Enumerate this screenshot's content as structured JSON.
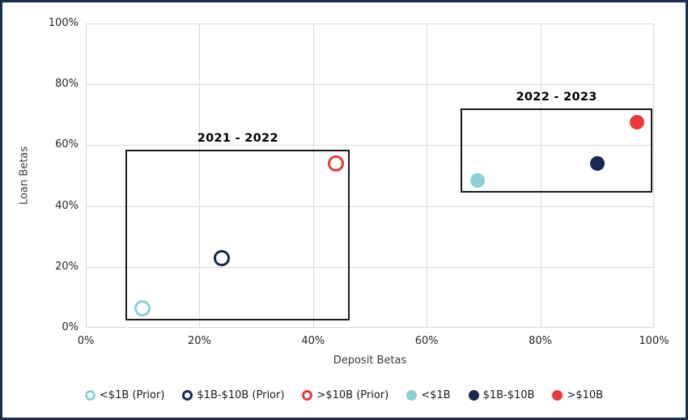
{
  "chart_data": {
    "type": "scatter",
    "title": "",
    "xlabel": "Deposit Betas",
    "ylabel": "Loan Betas",
    "xlim": [
      0,
      100
    ],
    "ylim": [
      0,
      100
    ],
    "x_tick_values": [
      0,
      20,
      40,
      60,
      80,
      100
    ],
    "x_tick_labels": [
      "0%",
      "20%",
      "40%",
      "60%",
      "80%",
      "100%"
    ],
    "y_tick_values": [
      0,
      20,
      40,
      60,
      80,
      100
    ],
    "y_tick_labels": [
      "0%",
      "20%",
      "40%",
      "60%",
      "80%",
      "100%"
    ],
    "grid": true,
    "legend_position": "bottom",
    "series": [
      {
        "name": "<$1B (Prior)",
        "style": "open",
        "color": "#8FD0D4",
        "points": [
          {
            "x": 10,
            "y": 6.5
          }
        ]
      },
      {
        "name": "$1B-$10B (Prior)",
        "style": "open",
        "color": "#182850",
        "points": [
          {
            "x": 24,
            "y": 23
          }
        ]
      },
      {
        "name": ">$10B (Prior)",
        "style": "open",
        "color": "#E83C3C",
        "points": [
          {
            "x": 44,
            "y": 54
          }
        ]
      },
      {
        "name": "<$1B",
        "style": "filled",
        "color": "#8FD0D4",
        "points": [
          {
            "x": 69,
            "y": 48.5
          }
        ]
      },
      {
        "name": "$1B-$10B",
        "style": "filled",
        "color": "#182850",
        "points": [
          {
            "x": 90,
            "y": 54
          }
        ]
      },
      {
        "name": ">$10B",
        "style": "filled",
        "color": "#E83C3C",
        "points": [
          {
            "x": 97,
            "y": 67.5
          }
        ]
      }
    ],
    "annotations": [
      {
        "label": "2021 - 2022",
        "x1": 7,
        "x2": 46.5,
        "y1": 2.5,
        "y2": 58.5
      },
      {
        "label": "2022 - 2023",
        "x1": 66,
        "x2": 99.7,
        "y1": 44.5,
        "y2": 72
      }
    ]
  },
  "colors": {
    "frame_border": "#1C2B51",
    "grid": "#D9D9D9",
    "annotation_border": "#1A1A1A",
    "tick_text": "#262626"
  }
}
